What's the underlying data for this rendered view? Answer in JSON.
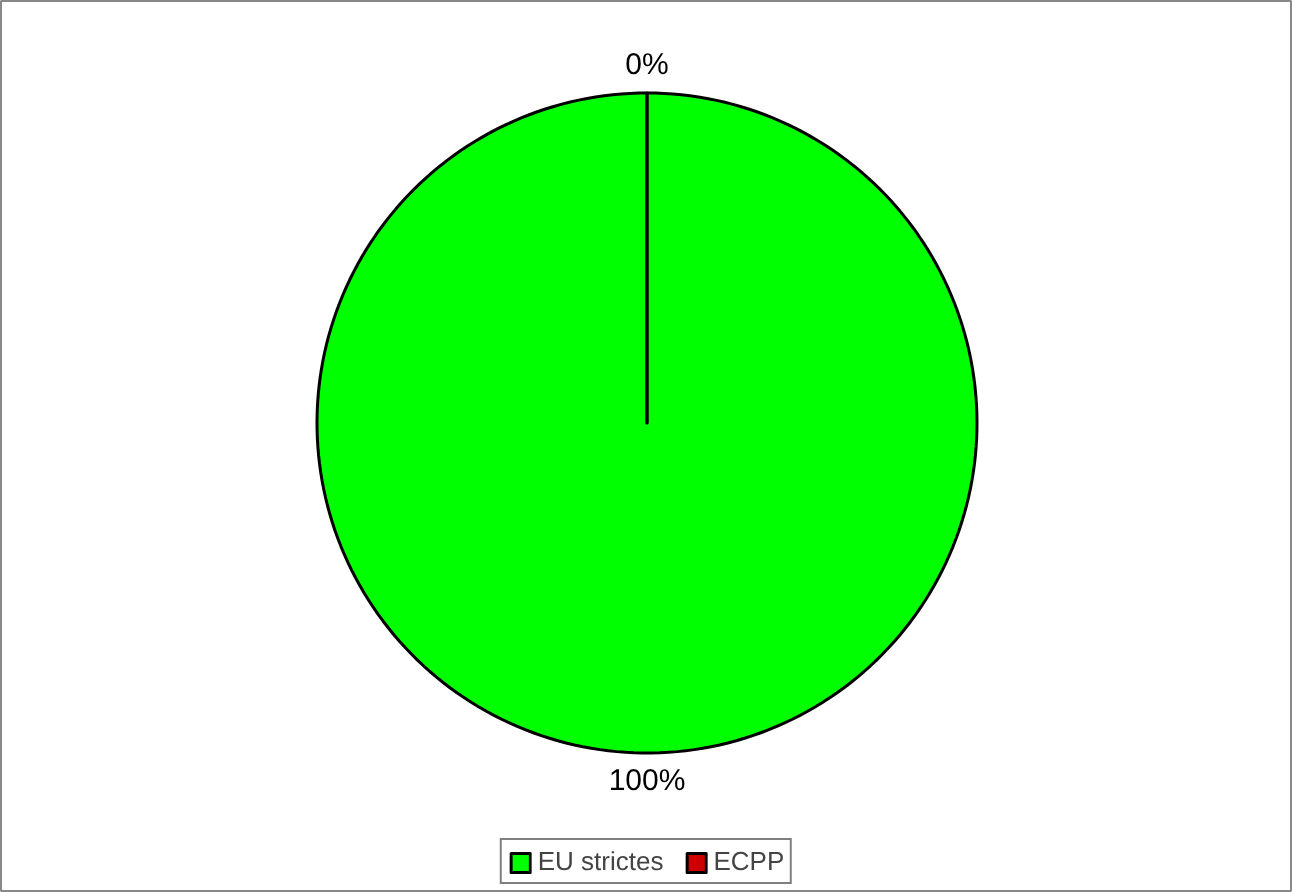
{
  "chart_data": {
    "type": "pie",
    "categories": [
      "EU strictes",
      "ECPP"
    ],
    "values": [
      100,
      0
    ],
    "colors": [
      "#00ff00",
      "#cc0000"
    ],
    "value_labels": [
      "100%",
      "0%"
    ],
    "legend": "bottom"
  }
}
